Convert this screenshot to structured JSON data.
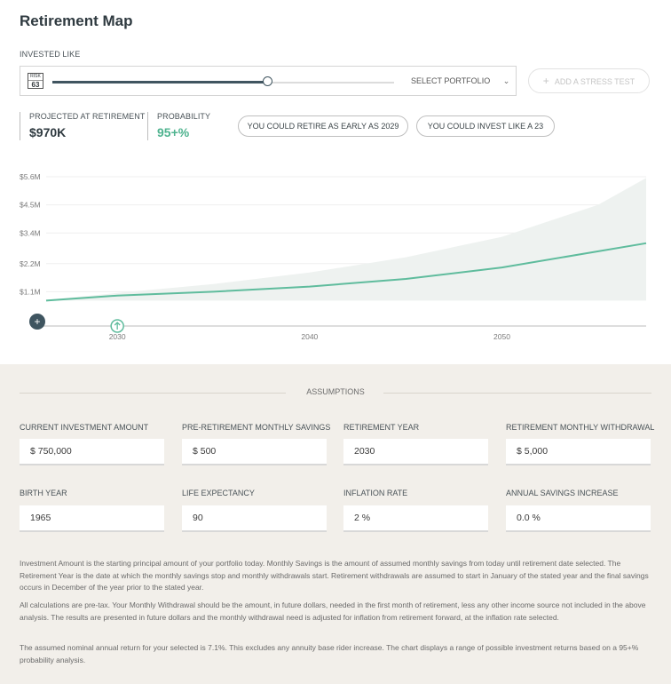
{
  "title": "Retirement Map",
  "invested_like": {
    "label": "INVESTED LIKE",
    "risk_badge": {
      "top": "RISK",
      "number": "63"
    },
    "slider_value_pct": 63,
    "select_label": "SELECT PORTFOLIO",
    "select_icon": "chevron-down-icon"
  },
  "stress_test": {
    "icon": "+",
    "label": "ADD A STRESS TEST"
  },
  "stats": {
    "projected": {
      "label": "PROJECTED AT RETIREMENT",
      "value": "$970K"
    },
    "probability": {
      "label": "PROBABILITY",
      "value": "95+%"
    }
  },
  "pills": {
    "retire_early": "YOU COULD RETIRE AS EARLY AS 2029",
    "invest_like": "YOU COULD INVEST LIKE A 23"
  },
  "chart_data": {
    "type": "area",
    "yticks": [
      "$5.6M",
      "$4.5M",
      "$3.4M",
      "$2.2M",
      "$1.1M"
    ],
    "ytick_values": [
      5.6,
      4.5,
      3.4,
      2.2,
      1.1
    ],
    "xticks": [
      "2030",
      "2040",
      "2050"
    ],
    "xtick_values": [
      2030,
      2040,
      2050
    ],
    "xlim": [
      2026.3,
      2057.5
    ],
    "ylim": [
      0,
      5.6
    ],
    "median_line": {
      "x": [
        2026.3,
        2030,
        2035,
        2040,
        2045,
        2050,
        2057.5
      ],
      "y": [
        0.75,
        0.95,
        1.1,
        1.3,
        1.6,
        2.05,
        3.0
      ]
    },
    "band_upper": {
      "x": [
        2026.3,
        2030,
        2035,
        2040,
        2045,
        2050,
        2055,
        2057.5
      ],
      "y": [
        0.78,
        1.05,
        1.4,
        1.85,
        2.45,
        3.25,
        4.5,
        5.55
      ]
    },
    "band_lower": {
      "x": [
        2026.3,
        2057.5
      ],
      "y": [
        0.75,
        0.75
      ]
    },
    "colors": {
      "line": "#5fbc9d",
      "band": "#eef2f0",
      "grid": "#efefef",
      "axis": "#dddddd"
    },
    "retirement_marker_year": 2030,
    "add_button_icon": "+"
  },
  "assumptions": {
    "title": "ASSUMPTIONS",
    "fields": [
      {
        "label": "CURRENT INVESTMENT AMOUNT",
        "value": "$ 750,000"
      },
      {
        "label": "PRE-RETIREMENT MONTHLY SAVINGS",
        "value": "$ 500"
      },
      {
        "label": "RETIREMENT YEAR",
        "value": "2030"
      },
      {
        "label": "RETIREMENT MONTHLY WITHDRAWAL",
        "value": "$ 5,000"
      },
      {
        "label": "BIRTH YEAR",
        "value": "1965"
      },
      {
        "label": "LIFE EXPECTANCY",
        "value": "90"
      },
      {
        "label": "INFLATION RATE",
        "value": "2 %"
      },
      {
        "label": "ANNUAL SAVINGS INCREASE",
        "value": "0.0 %"
      }
    ],
    "notes": [
      "Investment Amount is the starting principal amount of your portfolio today.  Monthly Savings is the amount of assumed monthly savings from today until retirement date selected.  The Retirement Year is the date at which the monthly savings stop and monthly withdrawals start.  Retirement withdrawals are assumed to start in January of the stated year and the final savings occurs in December of the year prior to the stated year.",
      "All calculations are pre-tax.  Your Monthly Withdrawal should be the amount, in future dollars, needed in the first month of retirement, less any other income source not included in the above analysis.  The results are presented in future dollars and the monthly withdrawal need is adjusted for inflation from retirement forward, at the inflation rate selected.",
      "The assumed nominal annual return for your selected is 7.1%.  This excludes any annuity base rider increase.  The chart displays a range of possible investment returns based on a 95+% probability analysis."
    ]
  }
}
